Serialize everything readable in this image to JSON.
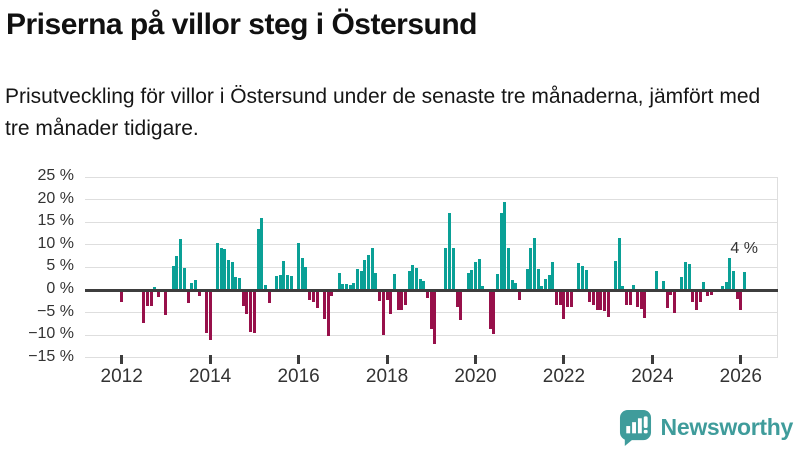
{
  "title": "Priserna på villor steg i Östersund",
  "subtitle": "Prisutveckling för villor i Östersund under de senaste tre månaderna, jämfört med tre månader tidigare.",
  "annotation": {
    "last_value_label": "4 %"
  },
  "brand": {
    "name": "Newsworthy",
    "icon": "newsworthy-speech-bubble-chart-icon",
    "color": "#3f9c9b"
  },
  "colors": {
    "positive_bar": "#0aa096",
    "negative_bar": "#97104a",
    "gridline": "#dedede",
    "zero_line": "#3d3d3d",
    "axis_text": "#333333"
  },
  "chart_data": {
    "type": "bar",
    "title": "Priserna på villor steg i Östersund",
    "unit": "%",
    "interval": "monthly",
    "start_month": "2012-01",
    "end_month": "2026-02",
    "ylim": [
      -15,
      25
    ],
    "grid": true,
    "legend": "none",
    "y_ticks": [
      {
        "value": 25,
        "label": "25 %"
      },
      {
        "value": 20,
        "label": "20 %"
      },
      {
        "value": 15,
        "label": "15 %"
      },
      {
        "value": 10,
        "label": "10 %"
      },
      {
        "value": 5,
        "label": "5 %"
      },
      {
        "value": 0,
        "label": "0 %"
      },
      {
        "value": -5,
        "label": "−5 %"
      },
      {
        "value": -10,
        "label": "−10 %"
      },
      {
        "value": -15,
        "label": "−15 %"
      }
    ],
    "x_ticks": [
      {
        "year": 2012,
        "label": "2012"
      },
      {
        "year": 2014,
        "label": "2014"
      },
      {
        "year": 2016,
        "label": "2016"
      },
      {
        "year": 2018,
        "label": "2018"
      },
      {
        "year": 2020,
        "label": "2020"
      },
      {
        "year": 2022,
        "label": "2022"
      },
      {
        "year": 2024,
        "label": "2024"
      },
      {
        "year": 2026,
        "label": "2026"
      }
    ],
    "values": [
      -2.4,
      0,
      0,
      0,
      0,
      0,
      -7.0,
      -3.3,
      -3.3,
      0.6,
      -1.3,
      0,
      -5.2,
      0,
      5.4,
      7.5,
      11.2,
      4.8,
      -2.6,
      1.5,
      2.3,
      -1.1,
      0,
      -9.3,
      -10.8,
      0,
      10.4,
      9.3,
      9.0,
      6.6,
      6.3,
      2.9,
      2.7,
      -3.4,
      -5.1,
      -9.1,
      -9.3,
      13.5,
      16.0,
      1.0,
      -2.6,
      0,
      3.0,
      3.4,
      6.5,
      3.4,
      3.0,
      0,
      10.4,
      7.0,
      5.1,
      -2.1,
      -2.4,
      -3.7,
      0,
      -6.3,
      -10.0,
      -1.1,
      0,
      3.8,
      1.3,
      1.3,
      1.2,
      1.5,
      4.6,
      4.3,
      6.6,
      7.7,
      9.4,
      3.7,
      -2.2,
      -9.8,
      -2.1,
      -5.0,
      3.6,
      -4.3,
      -4.3,
      -3.1,
      4.1,
      5.5,
      4.8,
      2.4,
      2.1,
      -1.5,
      -8.3,
      -11.8,
      0,
      0,
      9.3,
      17.0,
      9.3,
      -3.5,
      -6.5,
      0,
      3.7,
      4.5,
      6.3,
      6.8,
      0.9,
      0,
      -8.5,
      -9.6,
      3.5,
      17.1,
      19.5,
      9.2,
      2.2,
      1.5,
      -2.0,
      0,
      4.6,
      9.3,
      11.4,
      4.7,
      0.8,
      2.5,
      3.3,
      6.3,
      -3.0,
      -3.0,
      -6.3,
      -3.5,
      -3.5,
      0,
      5.9,
      5.2,
      4.4,
      -2.4,
      -3.1,
      -4.1,
      -4.3,
      -4.5,
      -5.8,
      0,
      6.5,
      11.5,
      0.8,
      -3.1,
      -3.1,
      1.0,
      -3.5,
      -4.0,
      -6.0,
      0,
      0,
      4.1,
      0,
      1.9,
      -3.7,
      -0.8,
      -4.9,
      0,
      2.9,
      6.3,
      5.7,
      -2.4,
      -4.2,
      -2.4,
      1.8,
      -1.0,
      -0.8,
      0,
      0,
      0.9,
      1.7,
      7.0,
      4.2,
      -1.8,
      -4.2,
      4.0
    ]
  }
}
